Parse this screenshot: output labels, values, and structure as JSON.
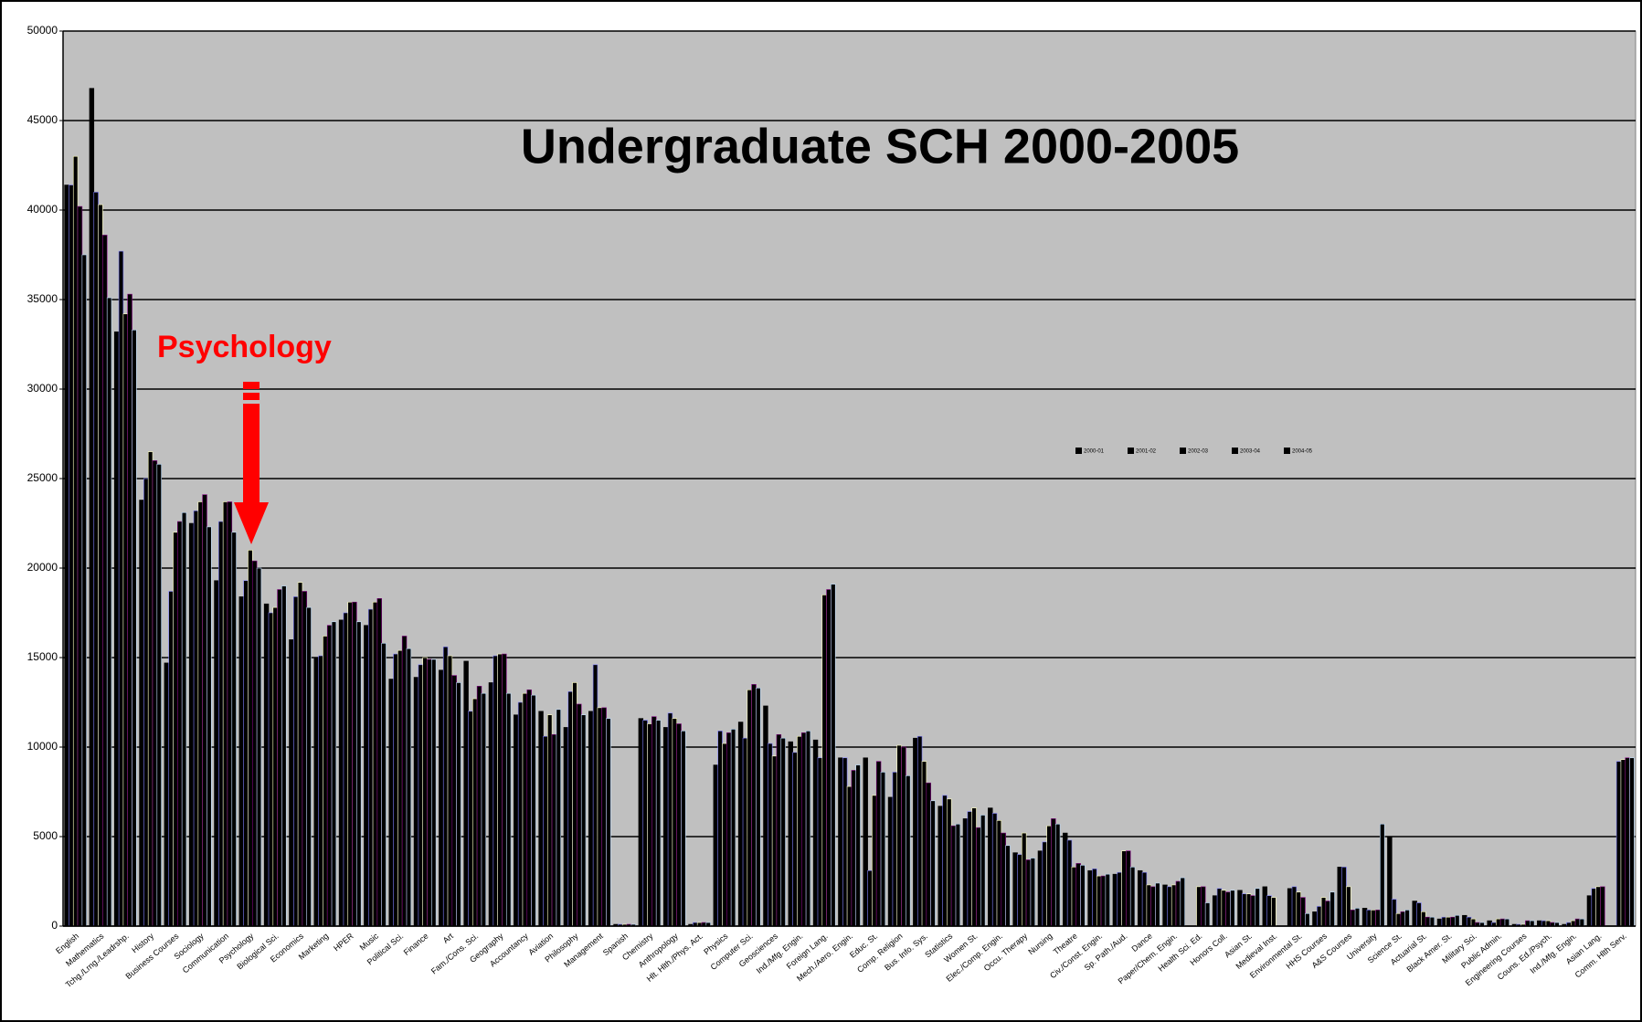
{
  "chart_data": {
    "type": "bar",
    "title": "Undergraduate SCH 2000-2005",
    "annotation": "Psychology",
    "categories": [
      "English",
      "Mathematics",
      "Tchg./Lrng./Leadrshp.",
      "History",
      "Business Courses",
      "Sociology",
      "Communication",
      "Psychology",
      "Biological Sci.",
      "Economics",
      "Marketing",
      "HPER",
      "Music",
      "Political Sci.",
      "Finance",
      "Art",
      "Fam./Cons. Sci.",
      "Geography",
      "Accountancy",
      "Aviation",
      "Philosophy",
      "Management",
      "Spanish",
      "Chemistry",
      "Anthropology",
      "Hlt. Hlth./Phys. Act.",
      "Physics",
      "Computer Sci.",
      "Geosciences",
      "Ind./Mfg. Engin.",
      "Foreign Lang.",
      "Mech./Aero. Engin.",
      "Educ. St.",
      "Comp. Religion",
      "Bus. Info. Sys.",
      "Statistics",
      "Women St.",
      "Elec./Comp. Engin.",
      "Occu. Therapy",
      "Nursing",
      "Theatre",
      "Civ./Const. Engin.",
      "Sp. Path./Aud.",
      "Dance",
      "Paper/Chem. Engin.",
      "Health Sci. Ed.",
      "Honors Coll.",
      "Asian St.",
      "Medieval Inst.",
      "Environmental St.",
      "HHS Courses",
      "A&S Courses",
      "University",
      "Science St.",
      "Actuarial St.",
      "Black Amer. St.",
      "Military Sci.",
      "Public Admin.",
      "Engineering Courses",
      "Couns. Ed./Psych.",
      "Ind./Mfg. Engin.",
      "Asian Lang.",
      "Comm. Hlth Serv."
    ],
    "series": [
      {
        "name": "2000-01",
        "color": "#000000",
        "values": [
          41400,
          46800,
          33200,
          23800,
          14700,
          22500,
          19300,
          18400,
          18000,
          16000,
          15000,
          17100,
          16800,
          13800,
          13900,
          14300,
          14800,
          13600,
          11800,
          12000,
          11100,
          12000,
          100,
          11600,
          11100,
          100,
          9000,
          11400,
          12300,
          10300,
          10400,
          9400,
          9400,
          7200,
          10500,
          6700,
          6000,
          6600,
          4100,
          4200,
          5200,
          3100,
          2900,
          3100,
          2300,
          0,
          1700,
          2000,
          2200,
          2100,
          800,
          3300,
          1000,
          5000,
          1400,
          400,
          600,
          300,
          100,
          300,
          100,
          1700,
          0
        ]
      },
      {
        "name": "2001-02",
        "color": "#000000",
        "values": [
          41400,
          41000,
          37700,
          25000,
          18700,
          23200,
          22600,
          19300,
          17500,
          18400,
          15100,
          17500,
          17700,
          15200,
          14600,
          15600,
          12000,
          15100,
          12500,
          10600,
          13100,
          14600,
          100,
          11500,
          11900,
          200,
          10900,
          10500,
          10200,
          9700,
          9400,
          9400,
          3100,
          8600,
          10600,
          7300,
          6400,
          6300,
          4000,
          4700,
          4800,
          3200,
          3000,
          3000,
          2200,
          0,
          2100,
          1800,
          1700,
          2200,
          1100,
          3300,
          900,
          1500,
          1300,
          500,
          500,
          200,
          100,
          300,
          200,
          2100,
          9200
        ]
      },
      {
        "name": "2002-03",
        "color": "#000000",
        "values": [
          43000,
          40300,
          34200,
          26500,
          22000,
          23700,
          23700,
          21000,
          17800,
          19200,
          16200,
          18100,
          18100,
          15400,
          15000,
          15100,
          12700,
          15200,
          13000,
          11800,
          13600,
          12200,
          100,
          11300,
          11600,
          200,
          10200,
          13200,
          9500,
          10600,
          18500,
          7800,
          7300,
          10100,
          9200,
          7100,
          6600,
          5900,
          5200,
          5600,
          3300,
          2800,
          4200,
          2300,
          2300,
          2200,
          2000,
          1800,
          1600,
          1900,
          1600,
          2200,
          900,
          700,
          800,
          500,
          400,
          400,
          100,
          300,
          300,
          2200,
          9300
        ]
      },
      {
        "name": "2003-04",
        "color": "#000000",
        "values": [
          40200,
          38600,
          35300,
          26000,
          22600,
          24100,
          23700,
          20400,
          18800,
          18700,
          16800,
          18100,
          18300,
          16200,
          14900,
          14000,
          13400,
          15200,
          13200,
          10700,
          12400,
          12200,
          100,
          11700,
          11300,
          200,
          10800,
          13500,
          10700,
          10800,
          18800,
          8700,
          9200,
          10000,
          8000,
          5600,
          5500,
          5200,
          3700,
          6000,
          3500,
          2800,
          4200,
          2200,
          2500,
          2200,
          1900,
          1700,
          0,
          1600,
          1400,
          900,
          900,
          800,
          500,
          500,
          200,
          400,
          300,
          200,
          400,
          2200,
          9400
        ]
      },
      {
        "name": "2004-05",
        "color": "#000000",
        "values": [
          37500,
          35100,
          33300,
          25800,
          23100,
          22300,
          22000,
          20000,
          19000,
          17800,
          17000,
          17000,
          15800,
          15500,
          14900,
          13600,
          13000,
          13000,
          12900,
          12100,
          11800,
          11600,
          100,
          11500,
          10900,
          200,
          11000,
          13300,
          10500,
          10900,
          19100,
          9000,
          8600,
          8400,
          7000,
          5700,
          6200,
          4500,
          3800,
          5700,
          3400,
          2900,
          3300,
          2400,
          2700,
          1300,
          2000,
          2100,
          0,
          700,
          1900,
          1000,
          5700,
          900,
          500,
          600,
          200,
          400,
          300,
          200,
          400,
          0,
          9400
        ]
      }
    ],
    "ylim": [
      0,
      50000
    ],
    "yticks": [
      0,
      5000,
      10000,
      15000,
      20000,
      25000,
      30000,
      35000,
      40000,
      45000,
      50000
    ],
    "grid": true,
    "legend": "right"
  }
}
